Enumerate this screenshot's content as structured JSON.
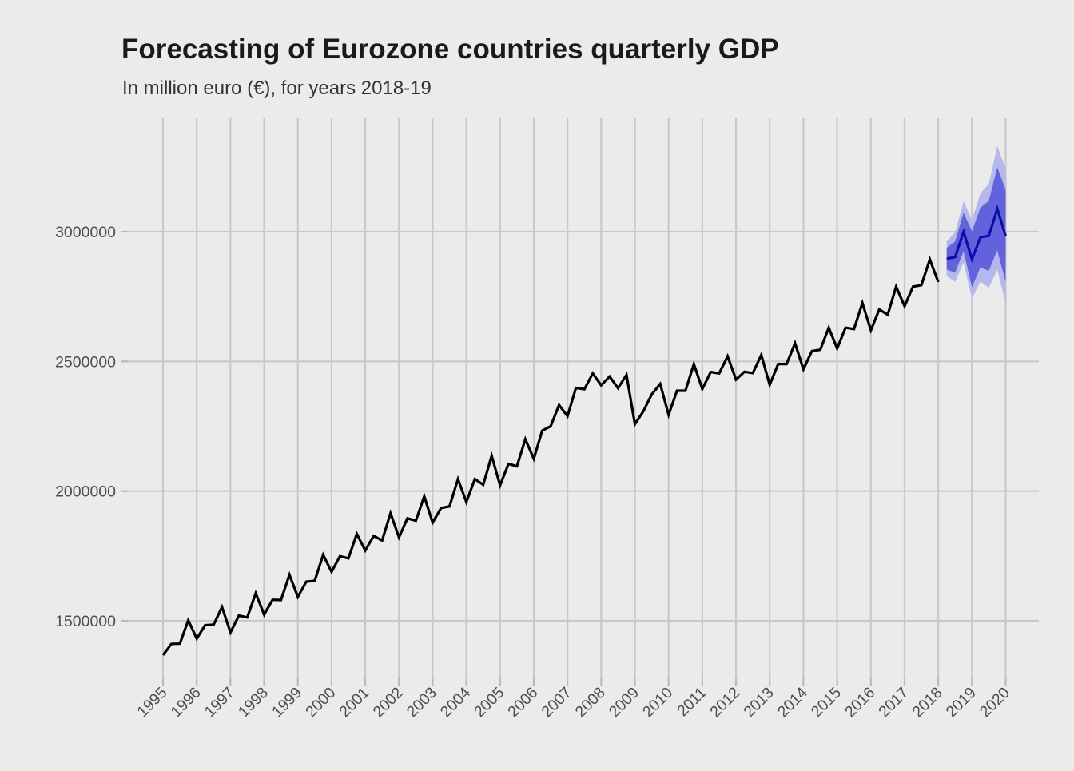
{
  "title": "Forecasting of Eurozone countries quarterly GDP",
  "subtitle": "In million euro (€), for years 2018-19",
  "colors": {
    "background": "#EBEBEB",
    "gridline": "#C9C9C9",
    "tick_mark": "#B9B9B9",
    "axis_text": "#4D4D4D",
    "title_text": "#1A1A1A",
    "history_line": "#000000",
    "forecast_line": "#0D0DA8",
    "ci80_band": "#6262DC",
    "ci95_band": "#B6B7ED"
  },
  "chart_data": {
    "type": "line",
    "title": "Forecasting of Eurozone countries quarterly GDP",
    "subtitle": "In million euro (€), for years 2018-19",
    "grid": true,
    "legend": false,
    "xlabel": "",
    "ylabel": "",
    "x_axis": {
      "ticks": [
        1995,
        1996,
        1997,
        1998,
        1999,
        2000,
        2001,
        2002,
        2003,
        2004,
        2005,
        2006,
        2007,
        2008,
        2009,
        2010,
        2011,
        2012,
        2013,
        2014,
        2015,
        2016,
        2017,
        2018,
        2019,
        2020
      ],
      "range": [
        1993.95,
        2021.0
      ],
      "label_angle_deg": 45
    },
    "y_axis": {
      "ticks": [
        1500000,
        2000000,
        2500000,
        3000000
      ],
      "tick_labels": [
        "1500000",
        "2000000",
        "2500000",
        "3000000"
      ],
      "range": [
        1269000,
        3437000
      ]
    },
    "series": [
      {
        "name": "historical-gdp",
        "role": "observed",
        "start": "1995 Q1",
        "end": "2018 Q1",
        "frequency": "quarterly",
        "start_x": 1995.0,
        "step_x": 0.25,
        "values": [
          1368000,
          1411000,
          1412000,
          1502000,
          1431000,
          1483000,
          1485000,
          1553000,
          1455000,
          1520000,
          1513000,
          1606000,
          1524000,
          1581000,
          1580000,
          1677000,
          1592000,
          1651000,
          1654000,
          1754000,
          1689000,
          1749000,
          1741000,
          1835000,
          1771000,
          1827000,
          1810000,
          1915000,
          1822000,
          1895000,
          1886000,
          1980000,
          1879000,
          1935000,
          1941000,
          2046000,
          1958000,
          2046000,
          2025000,
          2136000,
          2022000,
          2105000,
          2096000,
          2200000,
          2125000,
          2233000,
          2250000,
          2332000,
          2289000,
          2398000,
          2393000,
          2454000,
          2408000,
          2442000,
          2397000,
          2448000,
          2258000,
          2308000,
          2373000,
          2413000,
          2294000,
          2387000,
          2387000,
          2490000,
          2394000,
          2459000,
          2454000,
          2520000,
          2430000,
          2460000,
          2455000,
          2525000,
          2410000,
          2490000,
          2490000,
          2570000,
          2470000,
          2540000,
          2545000,
          2630000,
          2550000,
          2630000,
          2625000,
          2725000,
          2620000,
          2700000,
          2680000,
          2788000,
          2713000,
          2788000,
          2794000,
          2893000,
          2806000
        ]
      },
      {
        "name": "forecast-gdp",
        "role": "forecast",
        "start": "2018 Q2",
        "end": "2020 Q1",
        "frequency": "quarterly",
        "start_x": 2018.25,
        "step_x": 0.25,
        "mean": [
          2896000,
          2902000,
          2999000,
          2894000,
          2978000,
          2984000,
          3088000,
          2983000
        ],
        "ci80": {
          "lower": [
            2854000,
            2842000,
            2924000,
            2786000,
            2863000,
            2849000,
            2928000,
            2805000
          ],
          "upper": [
            2938000,
            2962000,
            3074000,
            3002000,
            3093000,
            3119000,
            3248000,
            3161000
          ]
        },
        "ci95": {
          "lower": [
            2829000,
            2807000,
            2881000,
            2742000,
            2808000,
            2784000,
            2853000,
            2723000
          ],
          "upper": [
            2963000,
            2997000,
            3117000,
            3046000,
            3148000,
            3184000,
            3330000,
            3243000
          ]
        }
      }
    ]
  }
}
